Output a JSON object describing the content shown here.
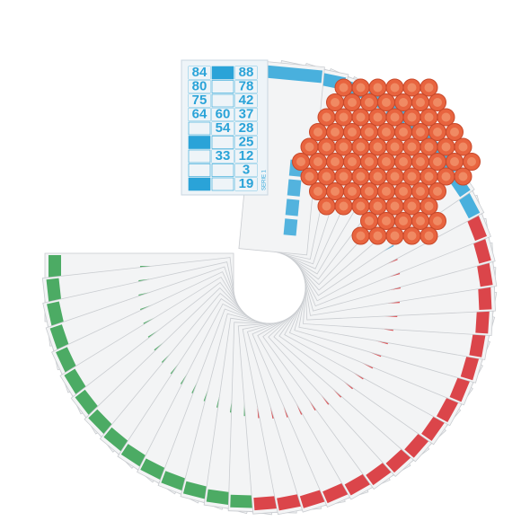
{
  "front_card": {
    "numbers": [
      "84",
      "64",
      "75",
      "80",
      "33",
      "54",
      "60",
      "19",
      "3",
      "12",
      "25",
      "28",
      "37",
      "42",
      "78",
      "88"
    ],
    "label": "SERIE 1"
  }
}
